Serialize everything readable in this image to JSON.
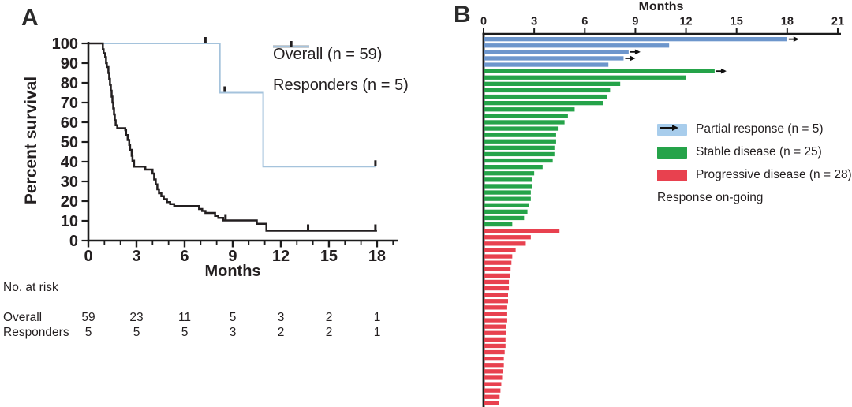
{
  "panelA": {
    "label": "A"
  },
  "panelB": {
    "label": "B"
  },
  "chart_data": [
    {
      "type": "line",
      "subtype": "kaplan_meier_step",
      "panel": "A",
      "xlabel": "Months",
      "ylabel": "Percent survival",
      "xlim": [
        0,
        19.5
      ],
      "ylim": [
        0,
        100
      ],
      "xticks": [
        0,
        3,
        6,
        9,
        12,
        15,
        18
      ],
      "yticks": [
        0,
        10,
        20,
        30,
        40,
        50,
        60,
        70,
        80,
        90,
        100
      ],
      "grid": false,
      "legend_position": "upper-right",
      "series": [
        {
          "name": "Overall (n = 59)",
          "color": "#231f20",
          "line_width": 2.5,
          "steps": [
            [
              0,
              100
            ],
            [
              0.9,
              97
            ],
            [
              0.95,
              95
            ],
            [
              1.05,
              93
            ],
            [
              1.1,
              90
            ],
            [
              1.15,
              88
            ],
            [
              1.25,
              85
            ],
            [
              1.3,
              82
            ],
            [
              1.35,
              79
            ],
            [
              1.4,
              76
            ],
            [
              1.45,
              73
            ],
            [
              1.5,
              70
            ],
            [
              1.55,
              67
            ],
            [
              1.6,
              64
            ],
            [
              1.65,
              61
            ],
            [
              1.7,
              58.5
            ],
            [
              1.8,
              57
            ],
            [
              2.3,
              56
            ],
            [
              2.35,
              53.5
            ],
            [
              2.45,
              51
            ],
            [
              2.55,
              48.5
            ],
            [
              2.6,
              46
            ],
            [
              2.7,
              43
            ],
            [
              2.75,
              40.5
            ],
            [
              2.85,
              37.5
            ],
            [
              3.55,
              36
            ],
            [
              4.0,
              34
            ],
            [
              4.1,
              31
            ],
            [
              4.2,
              28.5
            ],
            [
              4.3,
              26
            ],
            [
              4.4,
              24
            ],
            [
              4.55,
              22.5
            ],
            [
              4.7,
              21
            ],
            [
              4.9,
              19.5
            ],
            [
              5.1,
              18.5
            ],
            [
              5.35,
              17.5
            ],
            [
              6.9,
              16
            ],
            [
              7.1,
              15
            ],
            [
              7.3,
              14
            ],
            [
              7.9,
              12.5
            ],
            [
              8.1,
              11.5
            ],
            [
              8.4,
              10.2
            ],
            [
              10.5,
              8.5
            ],
            [
              11.1,
              5
            ],
            [
              18,
              5
            ]
          ],
          "censor_marks": [
            [
              8.55,
              10.2
            ],
            [
              13.7,
              5
            ],
            [
              17.9,
              5
            ]
          ]
        },
        {
          "name": "Responders (n = 5)",
          "color": "#a5c3dc",
          "line_width": 2,
          "steps": [
            [
              0,
              100
            ],
            [
              8.2,
              75
            ],
            [
              10.9,
              37.5
            ],
            [
              17.9,
              37.5
            ]
          ],
          "censor_marks": [
            [
              7.3,
              100
            ],
            [
              8.5,
              75
            ],
            [
              17.9,
              37.5
            ]
          ]
        }
      ],
      "risk_table": {
        "title": "No. at risk",
        "times": [
          0,
          3,
          6,
          9,
          12,
          15,
          18
        ],
        "rows": [
          {
            "name": "Overall",
            "counts": [
              "59",
              "23",
              "11",
              "5",
              "3",
              "2",
              "1"
            ]
          },
          {
            "name": "Responders",
            "counts": [
              "5",
              "5",
              "5",
              "3",
              "2",
              "2",
              "1"
            ]
          }
        ]
      }
    },
    {
      "type": "bar",
      "subtype": "swimmer",
      "panel": "B",
      "orientation": "horizontal",
      "xlabel": "Months",
      "xlim": [
        0,
        21
      ],
      "xticks": [
        0,
        3,
        6,
        9,
        12,
        15,
        18,
        21
      ],
      "groups": [
        {
          "name": "Partial response",
          "n": 5,
          "color": "#6d96cc",
          "values": [
            18.0,
            11.0,
            8.6,
            8.3,
            7.4
          ],
          "ongoing_indices": [
            0,
            2,
            3
          ]
        },
        {
          "name": "Stable disease",
          "n": 25,
          "color": "#25a349",
          "values": [
            13.7,
            12.0,
            8.1,
            7.5,
            7.3,
            7.1,
            5.4,
            5.0,
            4.8,
            4.4,
            4.3,
            4.3,
            4.2,
            4.2,
            4.1,
            3.5,
            3.0,
            2.9,
            2.9,
            2.8,
            2.8,
            2.7,
            2.6,
            2.4,
            1.7
          ],
          "ongoing_indices": [
            0
          ]
        },
        {
          "name": "Progressive disease",
          "n": 28,
          "color": "#e8414f",
          "values": [
            4.5,
            2.8,
            2.5,
            1.9,
            1.7,
            1.65,
            1.6,
            1.55,
            1.5,
            1.5,
            1.45,
            1.45,
            1.4,
            1.4,
            1.4,
            1.35,
            1.35,
            1.3,
            1.3,
            1.25,
            1.2,
            1.2,
            1.15,
            1.1,
            1.05,
            1.0,
            0.95,
            0.9
          ],
          "ongoing_indices": []
        }
      ],
      "legend": [
        {
          "label": "Partial response (n = 5)",
          "swatch_color": "#a8cdec"
        },
        {
          "label": "Stable disease (n = 25)",
          "swatch_color": "#25a349"
        },
        {
          "label": "Progressive disease (n = 28)",
          "swatch_color": "#e8414f"
        },
        {
          "label": "Response on-going",
          "marker": "arrow"
        }
      ]
    }
  ]
}
